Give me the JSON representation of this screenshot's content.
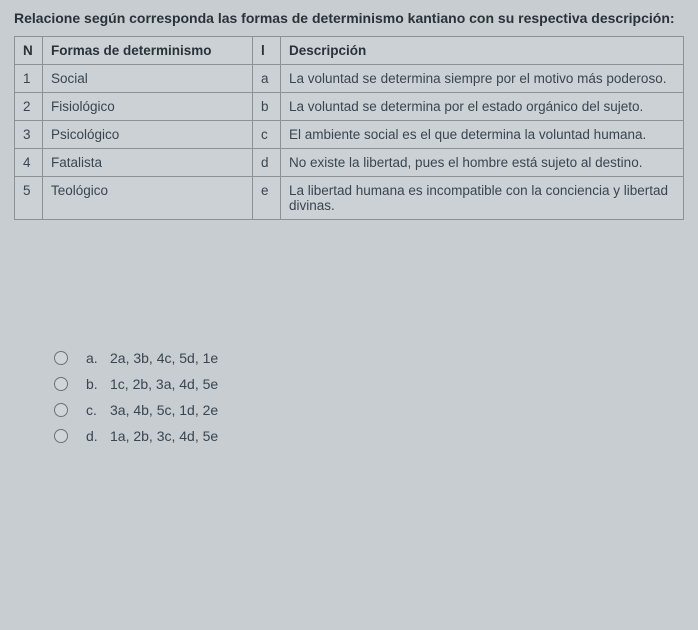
{
  "instruction": "Relacione según corresponda las formas de determinismo kantiano con su respectiva descripción:",
  "table": {
    "headers": {
      "n": "N",
      "form": "Formas de determinismo",
      "l": "l",
      "desc": "Descripción"
    },
    "rows": [
      {
        "n": "1",
        "form": "Social",
        "l": "a",
        "desc": "La voluntad se determina siempre por el motivo más poderoso."
      },
      {
        "n": "2",
        "form": "Fisiológico",
        "l": "b",
        "desc": "La voluntad se determina por el estado orgánico del sujeto."
      },
      {
        "n": "3",
        "form": "Psicológico",
        "l": "c",
        "desc": "El ambiente social es el que determina la voluntad humana."
      },
      {
        "n": "4",
        "form": "Fatalista",
        "l": "d",
        "desc": "No existe la libertad, pues el hombre está sujeto al destino."
      },
      {
        "n": "5",
        "form": "Teológico",
        "l": "e",
        "desc": "La libertad humana es incompatible con la conciencia y libertad divinas."
      }
    ]
  },
  "options": [
    {
      "letter": "a.",
      "text": "2a, 3b, 4c, 5d, 1e"
    },
    {
      "letter": "b.",
      "text": "1c, 2b, 3a, 4d, 5e"
    },
    {
      "letter": "c.",
      "text": "3a, 4b, 5c, 1d, 2e"
    },
    {
      "letter": "d.",
      "text": "1a, 2b, 3c, 4d, 5e"
    }
  ],
  "colors": {
    "background": "#c8cdd1",
    "border": "#8a9299",
    "text": "#3a4550",
    "heading": "#2a3238"
  }
}
